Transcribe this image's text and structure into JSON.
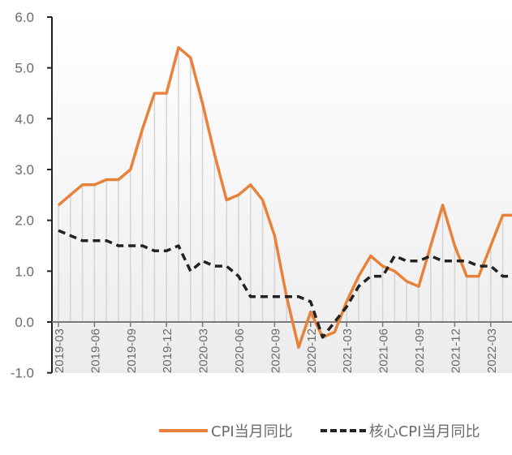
{
  "chart_data": {
    "type": "line",
    "title": "",
    "xlabel": "",
    "ylabel": "",
    "ylim": [
      -1.0,
      6.0
    ],
    "yticks": [
      "6.0",
      "5.0",
      "4.0",
      "3.0",
      "2.0",
      "1.0",
      "0.0",
      "-1.0"
    ],
    "xtick_labels": [
      "2019-03",
      "2019-06",
      "2019-09",
      "2019-12",
      "2020-03",
      "2020-06",
      "2020-09",
      "2020-12",
      "2021-03",
      "2021-06",
      "2021-09",
      "2021-12",
      "2022-03"
    ],
    "x": [
      "2019-03",
      "2019-04",
      "2019-05",
      "2019-06",
      "2019-07",
      "2019-08",
      "2019-09",
      "2019-10",
      "2019-11",
      "2019-12",
      "2020-01",
      "2020-02",
      "2020-03",
      "2020-04",
      "2020-05",
      "2020-06",
      "2020-07",
      "2020-08",
      "2020-09",
      "2020-10",
      "2020-11",
      "2020-12",
      "2021-01",
      "2021-02",
      "2021-03",
      "2021-04",
      "2021-05",
      "2021-06",
      "2021-07",
      "2021-08",
      "2021-09",
      "2021-10",
      "2021-11",
      "2021-12",
      "2022-01",
      "2022-02",
      "2022-03",
      "2022-04",
      "2022-05"
    ],
    "series": [
      {
        "name": "CPI当月同比",
        "color": "#E8823A",
        "style": "solid",
        "values": [
          2.3,
          2.5,
          2.7,
          2.7,
          2.8,
          2.8,
          3.0,
          3.8,
          4.5,
          4.5,
          5.4,
          5.2,
          4.3,
          3.3,
          2.4,
          2.5,
          2.7,
          2.4,
          1.7,
          0.5,
          -0.5,
          0.2,
          -0.3,
          -0.2,
          0.4,
          0.9,
          1.3,
          1.1,
          1.0,
          0.8,
          0.7,
          1.5,
          2.3,
          1.5,
          0.9,
          0.9,
          1.5,
          2.1,
          2.1
        ]
      },
      {
        "name": "核心CPI当月同比",
        "color": "#222222",
        "style": "dashed",
        "values": [
          1.8,
          1.7,
          1.6,
          1.6,
          1.6,
          1.5,
          1.5,
          1.5,
          1.4,
          1.4,
          1.5,
          1.0,
          1.2,
          1.1,
          1.1,
          0.9,
          0.5,
          0.5,
          0.5,
          0.5,
          0.5,
          0.4,
          -0.3,
          0.0,
          0.3,
          0.7,
          0.9,
          0.9,
          1.3,
          1.2,
          1.2,
          1.3,
          1.2,
          1.2,
          1.2,
          1.1,
          1.1,
          0.9,
          0.9
        ]
      }
    ],
    "grid": false,
    "drop_lines": true,
    "legend_position": "bottom"
  },
  "legend": {
    "cpi_label": "CPI当月同比",
    "core_label": "核心CPI当月同比"
  }
}
